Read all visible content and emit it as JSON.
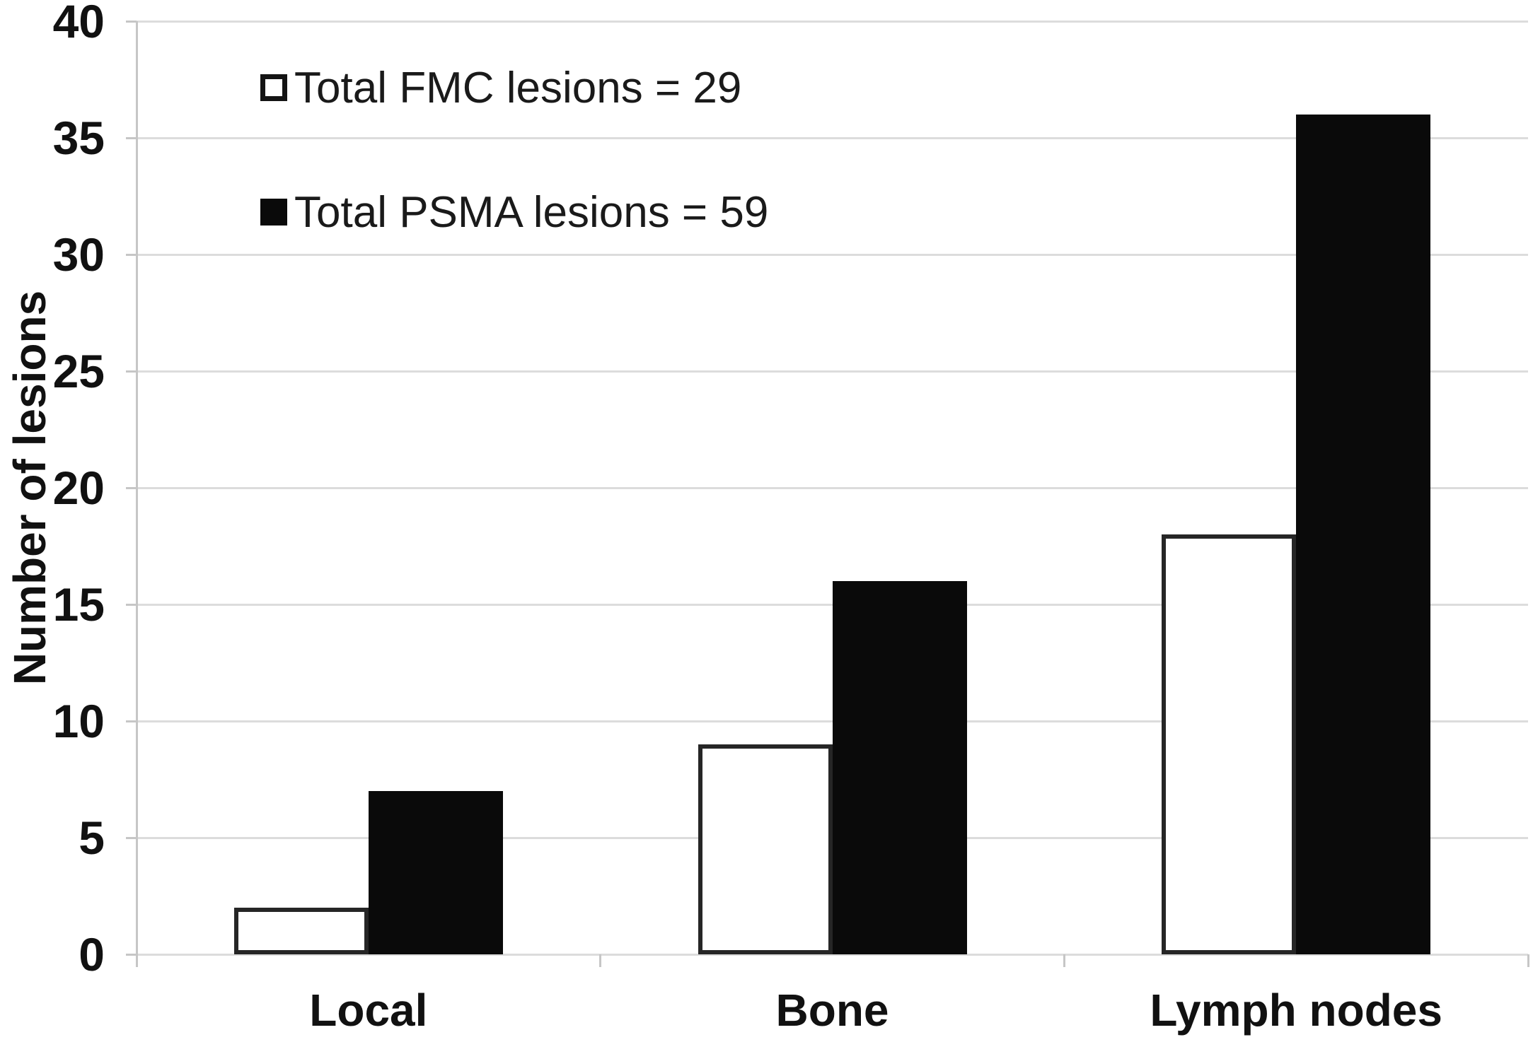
{
  "chart_data": {
    "type": "bar",
    "title": "",
    "categories": [
      "Local",
      "Bone",
      "Lymph nodes"
    ],
    "series": [
      {
        "name": "FMC",
        "legend_label": "Total FMC lesions = 29",
        "total": 29,
        "values": [
          2,
          9,
          18
        ],
        "fill": "#ffffff",
        "stroke": "#262626",
        "swatch_style": "open"
      },
      {
        "name": "PSMA",
        "legend_label": "Total PSMA lesions = 59",
        "total": 59,
        "values": [
          7,
          16,
          36
        ],
        "fill": "#0a0a0a",
        "stroke": "#0a0a0a",
        "swatch_style": "filled"
      }
    ],
    "xlabel": "",
    "ylabel": "Number of lesions",
    "ylim": [
      0,
      40
    ],
    "yticks": [
      0,
      5,
      10,
      15,
      20,
      25,
      30,
      35,
      40
    ],
    "grid": "horizontal",
    "gridline_color": "#dcdcdc",
    "axis_color": "#c6c6c6",
    "text_color": "#1a1a1a",
    "background": "#ffffff",
    "legend_position": "top-left-inside"
  }
}
